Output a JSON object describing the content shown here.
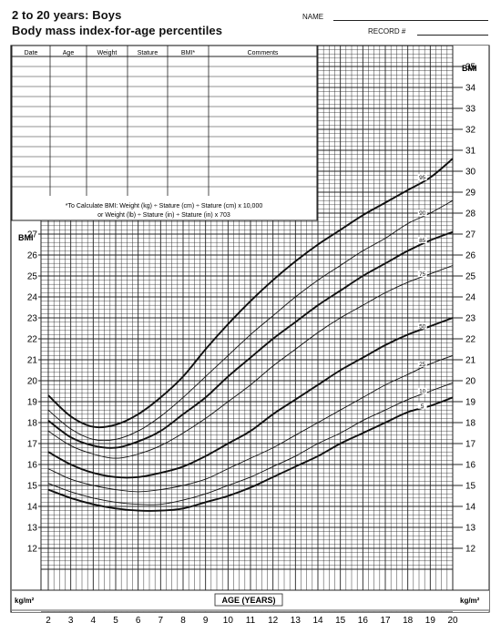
{
  "header": {
    "title_line1": "2 to 20 years: Boys",
    "title_line2": "Body mass index-for-age percentiles",
    "name_label": "NAME",
    "record_label": "RECORD #"
  },
  "record_table": {
    "columns": [
      "Date",
      "Age",
      "Weight",
      "Stature",
      "BMI*",
      "Comments"
    ],
    "footnote_line1": "*To Calculate BMI: Weight (kg) ÷ Stature (cm) ÷ Stature (cm) x 10,000",
    "footnote_line2": "or Weight (lb) ÷ Stature (in) ÷ Stature (in) x 703"
  },
  "colors": {
    "grid": "#222222",
    "curve": "#111111"
  },
  "chart_data": {
    "type": "line",
    "xlabel": "AGE (YEARS)",
    "ylabel_top": "BMI",
    "ylabel_unit": "kg/m²",
    "xlim": [
      2,
      20
    ],
    "ylim": [
      11,
      36
    ],
    "x_ticks": [
      2,
      3,
      4,
      5,
      6,
      7,
      8,
      9,
      10,
      11,
      12,
      13,
      14,
      15,
      16,
      17,
      18,
      19,
      20
    ],
    "y_ticks_left": [
      12,
      13,
      14,
      15,
      16,
      17,
      18,
      19,
      20,
      21,
      22,
      23,
      24,
      25,
      26,
      27
    ],
    "y_ticks_right": [
      12,
      13,
      14,
      15,
      16,
      17,
      18,
      19,
      20,
      21,
      22,
      23,
      24,
      25,
      26,
      27,
      28,
      29,
      30,
      31,
      32,
      33,
      34,
      35
    ],
    "grid": true,
    "x": [
      2,
      3,
      4,
      5,
      6,
      7,
      8,
      9,
      10,
      11,
      12,
      13,
      14,
      15,
      16,
      17,
      18,
      19,
      20
    ],
    "series": [
      {
        "name": "95",
        "values": [
          19.3,
          18.3,
          17.8,
          17.9,
          18.4,
          19.2,
          20.2,
          21.5,
          22.7,
          23.8,
          24.8,
          25.7,
          26.5,
          27.2,
          27.9,
          28.5,
          29.1,
          29.7,
          30.6
        ]
      },
      {
        "name": "90",
        "values": [
          18.6,
          17.7,
          17.2,
          17.2,
          17.6,
          18.3,
          19.2,
          20.2,
          21.2,
          22.2,
          23.1,
          24.0,
          24.8,
          25.5,
          26.2,
          26.8,
          27.5,
          28.0,
          28.6
        ]
      },
      {
        "name": "85",
        "values": [
          18.1,
          17.3,
          16.9,
          16.8,
          17.1,
          17.6,
          18.4,
          19.2,
          20.2,
          21.1,
          22.0,
          22.8,
          23.6,
          24.3,
          25.0,
          25.6,
          26.2,
          26.7,
          27.1
        ]
      },
      {
        "name": "75",
        "values": [
          17.6,
          16.9,
          16.5,
          16.3,
          16.5,
          16.9,
          17.5,
          18.2,
          19.0,
          19.8,
          20.7,
          21.5,
          22.3,
          23.0,
          23.6,
          24.2,
          24.7,
          25.1,
          25.5
        ]
      },
      {
        "name": "50",
        "values": [
          16.6,
          16.0,
          15.6,
          15.4,
          15.4,
          15.6,
          15.9,
          16.4,
          17.0,
          17.6,
          18.4,
          19.1,
          19.8,
          20.5,
          21.1,
          21.7,
          22.2,
          22.6,
          23.0
        ]
      },
      {
        "name": "25",
        "values": [
          15.8,
          15.3,
          15.0,
          14.8,
          14.7,
          14.8,
          15.0,
          15.3,
          15.8,
          16.3,
          16.8,
          17.4,
          18.0,
          18.6,
          19.2,
          19.8,
          20.3,
          20.8,
          21.2
        ]
      },
      {
        "name": "10",
        "values": [
          15.1,
          14.7,
          14.4,
          14.2,
          14.1,
          14.1,
          14.3,
          14.6,
          15.0,
          15.4,
          15.9,
          16.4,
          17.0,
          17.5,
          18.1,
          18.6,
          19.1,
          19.5,
          19.9
        ]
      },
      {
        "name": "5",
        "values": [
          14.8,
          14.4,
          14.1,
          13.9,
          13.8,
          13.8,
          13.9,
          14.2,
          14.5,
          14.9,
          15.4,
          15.9,
          16.4,
          17.0,
          17.5,
          18.0,
          18.5,
          18.8,
          19.2
        ]
      }
    ]
  }
}
